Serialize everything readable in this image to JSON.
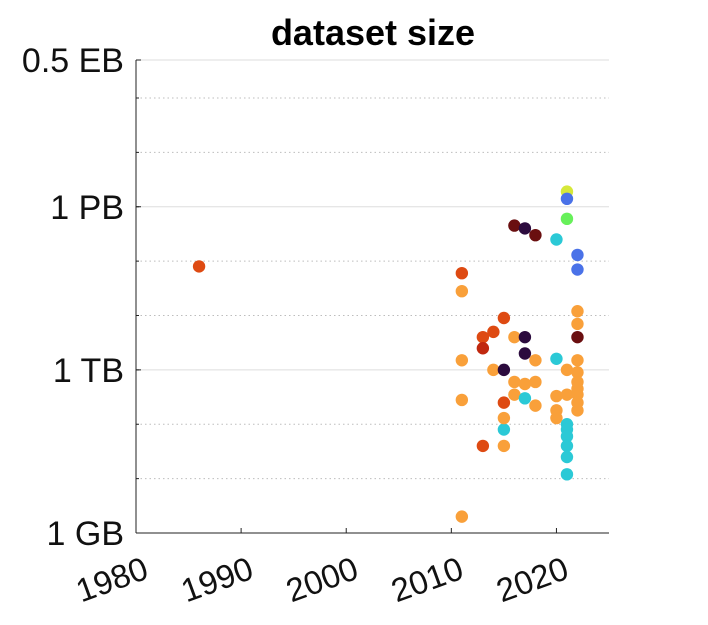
{
  "chart_data": {
    "type": "scatter",
    "title": "dataset size",
    "xlabel": "",
    "ylabel": "",
    "x_scale": "linear",
    "y_scale": "log10",
    "y_unit": "bytes",
    "xlim": [
      1980,
      2025
    ],
    "ylim": [
      1000000000.0,
      5e+17
    ],
    "grid": "horizontal",
    "x_ticks": [
      1980,
      1990,
      2000,
      2010,
      2020
    ],
    "x_tick_labels": [
      "1980",
      "1990",
      "2000",
      "2010",
      "2020"
    ],
    "y_ticks": [
      1000000000.0,
      1000000000000.0,
      1000000000000000.0,
      5e+17
    ],
    "y_tick_labels": [
      "1 GB",
      "1 TB",
      "1 PB",
      "0.5 EB"
    ],
    "points": [
      {
        "x": 1986,
        "y": 80000000000000.0,
        "color": "#de4a12"
      },
      {
        "x": 2011,
        "y": 2000000000.0,
        "color": "#f9a03a"
      },
      {
        "x": 2011,
        "y": 60000000000000.0,
        "color": "#de4a12"
      },
      {
        "x": 2011,
        "y": 1500000000000.0,
        "color": "#f9a03a"
      },
      {
        "x": 2011,
        "y": 280000000000.0,
        "color": "#f9a03a"
      },
      {
        "x": 2011,
        "y": 28000000000000.0,
        "color": "#f9a03a"
      },
      {
        "x": 2013,
        "y": 4000000000000.0,
        "color": "#de4a12"
      },
      {
        "x": 2013,
        "y": 2500000000000.0,
        "color": "#c0280f"
      },
      {
        "x": 2013,
        "y": 40000000000.0,
        "color": "#de4a12"
      },
      {
        "x": 2014,
        "y": 5000000000000.0,
        "color": "#de4a12"
      },
      {
        "x": 2014,
        "y": 1000000000000.0,
        "color": "#f9a03a"
      },
      {
        "x": 2015,
        "y": 9000000000000.0,
        "color": "#de4a12"
      },
      {
        "x": 2015,
        "y": 1000000000000.0,
        "color": "#2c0b3e"
      },
      {
        "x": 2015,
        "y": 250000000000.0,
        "color": "#de4a12"
      },
      {
        "x": 2015,
        "y": 40000000000.0,
        "color": "#f9a03a"
      },
      {
        "x": 2015,
        "y": 80000000000.0,
        "color": "#2bc9d6"
      },
      {
        "x": 2015,
        "y": 130000000000.0,
        "color": "#f9a03a"
      },
      {
        "x": 2016,
        "y": 450000000000000.0,
        "color": "#6a0f10"
      },
      {
        "x": 2016,
        "y": 4000000000000.0,
        "color": "#f9a03a"
      },
      {
        "x": 2016,
        "y": 600000000000.0,
        "color": "#f9a03a"
      },
      {
        "x": 2016,
        "y": 350000000000.0,
        "color": "#f9a03a"
      },
      {
        "x": 2017,
        "y": 400000000000000.0,
        "color": "#2c0b3e"
      },
      {
        "x": 2017,
        "y": 4000000000000.0,
        "color": "#2c0b3e"
      },
      {
        "x": 2017,
        "y": 2000000000000.0,
        "color": "#2c0b3e"
      },
      {
        "x": 2017,
        "y": 550000000000.0,
        "color": "#f9a03a"
      },
      {
        "x": 2017,
        "y": 300000000000.0,
        "color": "#2bc9d6"
      },
      {
        "x": 2018,
        "y": 300000000000000.0,
        "color": "#6a0f10"
      },
      {
        "x": 2018,
        "y": 1500000000000.0,
        "color": "#f9a03a"
      },
      {
        "x": 2018,
        "y": 600000000000.0,
        "color": "#f9a03a"
      },
      {
        "x": 2018,
        "y": 220000000000.0,
        "color": "#f9a03a"
      },
      {
        "x": 2020,
        "y": 250000000000000.0,
        "color": "#2bc9d6"
      },
      {
        "x": 2020,
        "y": 1600000000000.0,
        "color": "#2bc9d6"
      },
      {
        "x": 2020,
        "y": 330000000000.0,
        "color": "#f9a03a"
      },
      {
        "x": 2020,
        "y": 180000000000.0,
        "color": "#f9a03a"
      },
      {
        "x": 2020,
        "y": 130000000000.0,
        "color": "#f9a03a"
      },
      {
        "x": 2021,
        "y": 1900000000000000.0,
        "color": "#d6e83a"
      },
      {
        "x": 2021,
        "y": 1400000000000000.0,
        "color": "#4a72e8"
      },
      {
        "x": 2021,
        "y": 600000000000000.0,
        "color": "#67f05a"
      },
      {
        "x": 2021,
        "y": 1000000000000.0,
        "color": "#f9a03a"
      },
      {
        "x": 2021,
        "y": 350000000000.0,
        "color": "#f9a03a"
      },
      {
        "x": 2021,
        "y": 100000000000.0,
        "color": "#2bc9d6"
      },
      {
        "x": 2021,
        "y": 80000000000.0,
        "color": "#2bc9d6"
      },
      {
        "x": 2021,
        "y": 60000000000.0,
        "color": "#2bc9d6"
      },
      {
        "x": 2021,
        "y": 40000000000.0,
        "color": "#2bc9d6"
      },
      {
        "x": 2021,
        "y": 25000000000.0,
        "color": "#2bc9d6"
      },
      {
        "x": 2021,
        "y": 12000000000.0,
        "color": "#2bc9d6"
      },
      {
        "x": 2022,
        "y": 130000000000000.0,
        "color": "#4a72e8"
      },
      {
        "x": 2022,
        "y": 70000000000000.0,
        "color": "#4a72e8"
      },
      {
        "x": 2022,
        "y": 12000000000000.0,
        "color": "#f9a03a"
      },
      {
        "x": 2022,
        "y": 7000000000000.0,
        "color": "#f9a03a"
      },
      {
        "x": 2022,
        "y": 4000000000000.0,
        "color": "#6a0f10"
      },
      {
        "x": 2022,
        "y": 1500000000000.0,
        "color": "#f9a03a"
      },
      {
        "x": 2022,
        "y": 900000000000.0,
        "color": "#f9a03a"
      },
      {
        "x": 2022,
        "y": 600000000000.0,
        "color": "#f9a03a"
      },
      {
        "x": 2022,
        "y": 450000000000.0,
        "color": "#f9a03a"
      },
      {
        "x": 2022,
        "y": 350000000000.0,
        "color": "#f9a03a"
      },
      {
        "x": 2022,
        "y": 250000000000.0,
        "color": "#f9a03a"
      },
      {
        "x": 2022,
        "y": 180000000000.0,
        "color": "#f9a03a"
      }
    ]
  }
}
